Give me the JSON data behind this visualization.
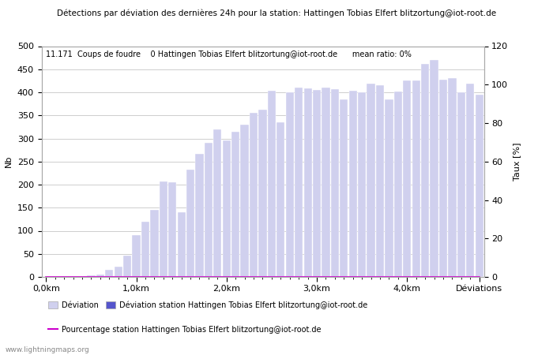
{
  "title": "Détections par déviation des dernières 24h pour la station: Hattingen Tobias Elfert blitzortung@iot-root.de",
  "subtitle": "11.171  Coups de foudre    0 Hattingen Tobias Elfert blitzortung@iot-root.de      mean ratio: 0%",
  "ylabel_left": "Nb",
  "ylabel_right": "Taux [%]",
  "watermark": "www.lightningmaps.org",
  "bar_color_light": "#d0d0ee",
  "bar_color_dark": "#5555cc",
  "line_color": "#cc00cc",
  "background_color": "#ffffff",
  "grid_color": "#bbbbbb",
  "ylim_left": [
    0,
    500
  ],
  "ylim_right": [
    0,
    120
  ],
  "yticks_left": [
    0,
    50,
    100,
    150,
    200,
    250,
    300,
    350,
    400,
    450,
    500
  ],
  "yticks_right": [
    0,
    20,
    40,
    60,
    80,
    100,
    120
  ],
  "legend_label_deviation": "Déviation",
  "legend_label_station": "Déviation station Hattingen Tobias Elfert blitzortung@iot-root.de",
  "legend_label_pct": "Pourcentage station Hattingen Tobias Elfert blitzortung@iot-root.de",
  "xtick_positions": [
    0,
    10,
    20,
    30,
    40,
    48
  ],
  "xtick_labels": [
    "0,0km",
    "1,0km",
    "2,0km",
    "3,0km",
    "4,0km",
    "Déviations"
  ],
  "values_all": [
    0,
    0,
    0,
    0,
    0,
    3,
    5,
    15,
    23,
    46,
    90,
    120,
    145,
    207,
    205,
    140,
    232,
    267,
    290,
    320,
    295,
    315,
    330,
    356,
    362,
    404,
    335,
    400,
    410,
    408,
    405,
    410,
    406,
    385,
    403,
    400,
    418,
    416,
    385,
    402,
    425,
    425,
    462,
    470,
    428,
    430,
    400,
    418,
    395
  ],
  "values_station": [
    0,
    0,
    0,
    0,
    0,
    0,
    0,
    0,
    0,
    0,
    0,
    0,
    0,
    0,
    0,
    0,
    0,
    0,
    0,
    0,
    0,
    0,
    0,
    0,
    0,
    0,
    0,
    0,
    0,
    0,
    0,
    0,
    0,
    0,
    0,
    0,
    0,
    0,
    0,
    0,
    0,
    0,
    0,
    0,
    0,
    0,
    0,
    0,
    0
  ],
  "n_bars": 49
}
